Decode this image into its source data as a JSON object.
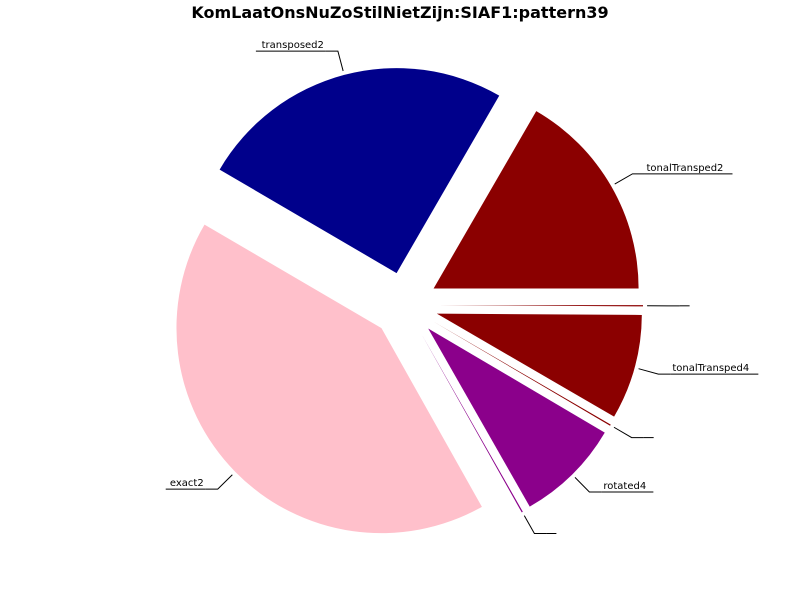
{
  "chart_data": {
    "type": "pie",
    "title": "KomLaatOnsNuZoStilNietZijn:SIAF1:pattern39",
    "start_angle_deg": 0,
    "direction": "counterclockwise",
    "explode": true,
    "legend": "none",
    "label_style": "leader-lines-with-underline",
    "slices": [
      {
        "label": "tonalTransped2",
        "value": 16.7,
        "color": "#8b0000"
      },
      {
        "label": "transposed2",
        "value": 25.0,
        "color": "#00008b"
      },
      {
        "label": "exact2",
        "value": 41.7,
        "color": "#ffc0cb"
      },
      {
        "label": "",
        "value": 0.1,
        "color": "#8b008b"
      },
      {
        "label": "rotated4",
        "value": 8.3,
        "color": "#8b008b"
      },
      {
        "label": "",
        "value": 0.1,
        "color": "#8b0000"
      },
      {
        "label": "tonalTransped4",
        "value": 8.3,
        "color": "#8b0000"
      },
      {
        "label": "",
        "value": 0.1,
        "color": "#8b0000"
      }
    ]
  }
}
